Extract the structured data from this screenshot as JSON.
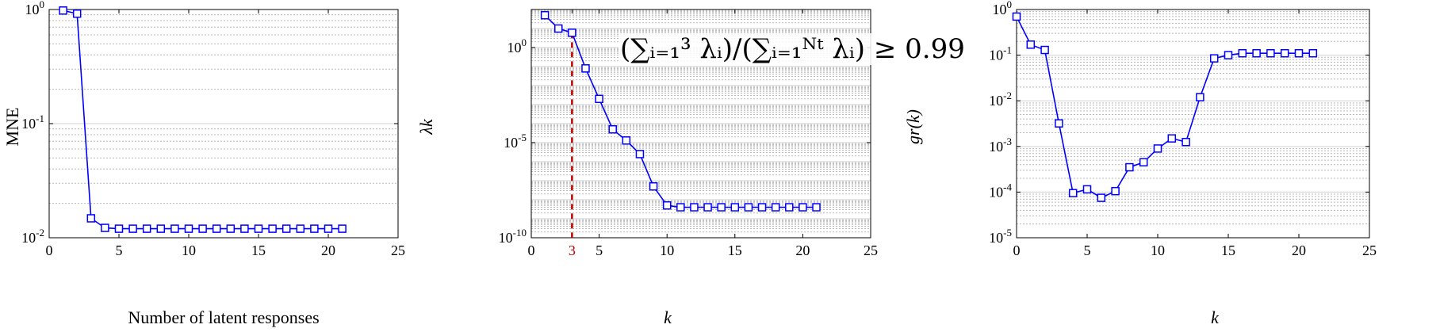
{
  "chart_data": [
    {
      "type": "line",
      "yscale": "log",
      "xlabel": "Number of latent responses",
      "ylabel": "MNE",
      "xlim": [
        0,
        25
      ],
      "ylim": [
        0.01,
        1
      ],
      "xticks": [
        0,
        5,
        10,
        15,
        20,
        25
      ],
      "yticks": [
        {
          "v": 0.01,
          "base": "10",
          "exp": "-2"
        },
        {
          "v": 0.1,
          "base": "10",
          "exp": "-1"
        },
        {
          "v": 1,
          "base": "10",
          "exp": "0"
        }
      ],
      "grid": "major and minor y",
      "series": [
        {
          "color": "#0000ff",
          "marker": "square",
          "x": [
            1,
            2,
            3,
            4,
            5,
            6,
            7,
            8,
            9,
            10,
            11,
            12,
            13,
            14,
            15,
            16,
            17,
            18,
            19,
            20,
            21
          ],
          "y": [
            0.98,
            0.92,
            0.0148,
            0.0122,
            0.012,
            0.012,
            0.012,
            0.012,
            0.012,
            0.012,
            0.012,
            0.012,
            0.012,
            0.012,
            0.012,
            0.012,
            0.012,
            0.012,
            0.012,
            0.012,
            0.012
          ]
        }
      ]
    },
    {
      "type": "line",
      "yscale": "log",
      "xlabel": "k",
      "ylabel": "λk",
      "xlim": [
        0,
        25
      ],
      "ylim": [
        1e-10,
        100
      ],
      "xticks": [
        0,
        3,
        5,
        10,
        15,
        20,
        25
      ],
      "highlight_xtick": {
        "value": 3,
        "color": "#c00000"
      },
      "yticks": [
        {
          "v": 1e-10,
          "base": "10",
          "exp": "-10"
        },
        {
          "v": 1e-05,
          "base": "10",
          "exp": "-5"
        },
        {
          "v": 1,
          "base": "10",
          "exp": "0"
        }
      ],
      "grid": "major and minor y",
      "annotation": "(∑ᵢ₌₁³ λᵢ)/(∑ᵢ₌₁ᴺᵗ λᵢ) ≥ 0.99",
      "vline": {
        "x": 3,
        "color": "#c00000",
        "style": "dashed"
      },
      "series": [
        {
          "color": "#0000ff",
          "marker": "square",
          "x": [
            1,
            2,
            3,
            4,
            5,
            6,
            7,
            8,
            9,
            10,
            11,
            12,
            13,
            14,
            15,
            16,
            17,
            18,
            19,
            20,
            21
          ],
          "y": [
            50,
            10,
            6,
            0.08,
            0.002,
            5e-05,
            1.3e-05,
            2.5e-06,
            5e-08,
            5e-09,
            4e-09,
            4e-09,
            4e-09,
            4e-09,
            4e-09,
            4e-09,
            4e-09,
            4e-09,
            4e-09,
            4e-09,
            4e-09
          ]
        }
      ]
    },
    {
      "type": "line",
      "yscale": "log",
      "xlabel": "k",
      "ylabel": "gr(k)",
      "xlim": [
        0,
        25
      ],
      "ylim": [
        1e-05,
        1
      ],
      "xticks": [
        0,
        5,
        10,
        15,
        20,
        25
      ],
      "yticks": [
        {
          "v": 1e-05,
          "base": "10",
          "exp": "-5"
        },
        {
          "v": 0.0001,
          "base": "10",
          "exp": "-4"
        },
        {
          "v": 0.001,
          "base": "10",
          "exp": "-3"
        },
        {
          "v": 0.01,
          "base": "10",
          "exp": "-2"
        },
        {
          "v": 0.1,
          "base": "10",
          "exp": "-1"
        },
        {
          "v": 1,
          "base": "10",
          "exp": "0"
        }
      ],
      "grid": "major and minor y",
      "series": [
        {
          "color": "#0000ff",
          "marker": "square",
          "x": [
            0,
            1,
            2,
            3,
            4,
            5,
            6,
            7,
            8,
            9,
            10,
            11,
            12,
            13,
            14,
            15,
            16,
            17,
            18,
            19,
            20,
            21
          ],
          "y": [
            0.7,
            0.17,
            0.13,
            0.0032,
            9.5e-05,
            0.000115,
            7.5e-05,
            0.000105,
            0.00035,
            0.00045,
            0.0009,
            0.0015,
            0.00125,
            0.012,
            0.085,
            0.1,
            0.11,
            0.11,
            0.11,
            0.11,
            0.11,
            0.11
          ]
        }
      ]
    }
  ]
}
